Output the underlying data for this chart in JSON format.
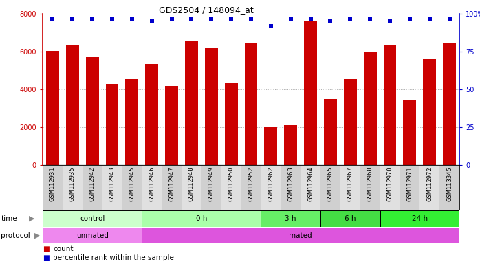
{
  "title": "GDS2504 / 148094_at",
  "samples": [
    "GSM112931",
    "GSM112935",
    "GSM112942",
    "GSM112943",
    "GSM112945",
    "GSM112946",
    "GSM112947",
    "GSM112948",
    "GSM112949",
    "GSM112950",
    "GSM112952",
    "GSM112962",
    "GSM112963",
    "GSM112964",
    "GSM112965",
    "GSM112967",
    "GSM112968",
    "GSM112970",
    "GSM112971",
    "GSM112972",
    "GSM113345"
  ],
  "counts": [
    6050,
    6350,
    5700,
    4300,
    4550,
    5350,
    4200,
    6600,
    6200,
    4350,
    6450,
    2000,
    2100,
    7600,
    3500,
    4550,
    6000,
    6350,
    3450,
    5600,
    6450
  ],
  "percentile_ranks": [
    97,
    97,
    97,
    97,
    97,
    95,
    97,
    97,
    97,
    97,
    97,
    92,
    97,
    97,
    95,
    97,
    97,
    95,
    97,
    97,
    97
  ],
  "bar_color": "#CC0000",
  "dot_color": "#0000CC",
  "ylim": [
    0,
    8000
  ],
  "y2lim": [
    0,
    100
  ],
  "yticks_left": [
    0,
    2000,
    4000,
    6000,
    8000
  ],
  "yticks_right": [
    0,
    25,
    50,
    75,
    100
  ],
  "time_groups": [
    {
      "label": "control",
      "start": 0,
      "end": 5,
      "color": "#ccffcc"
    },
    {
      "label": "0 h",
      "start": 5,
      "end": 11,
      "color": "#aaffaa"
    },
    {
      "label": "3 h",
      "start": 11,
      "end": 14,
      "color": "#66ee66"
    },
    {
      "label": "6 h",
      "start": 14,
      "end": 17,
      "color": "#44dd44"
    },
    {
      "label": "24 h",
      "start": 17,
      "end": 21,
      "color": "#33ee33"
    }
  ],
  "protocol_groups": [
    {
      "label": "unmated",
      "start": 0,
      "end": 5,
      "color": "#ee88ee"
    },
    {
      "label": "mated",
      "start": 5,
      "end": 21,
      "color": "#dd55dd"
    }
  ]
}
